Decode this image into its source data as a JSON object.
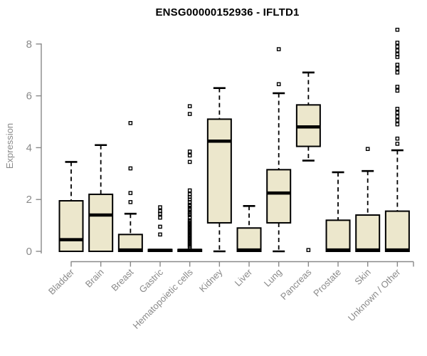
{
  "chart_data": {
    "type": "boxplot",
    "title": "ENSG00000152936 - IFLTD1",
    "ylabel": "Expression",
    "xlabel": "",
    "ylim": [
      0,
      8
    ],
    "yticks": [
      0,
      2,
      4,
      6,
      8
    ],
    "grid": false,
    "legend": "none",
    "style": {
      "box_fill": "#ece7cc",
      "box_stroke": "#000000",
      "axis_color": "#898989",
      "label_color": "#8a8a8a",
      "background": "#ffffff"
    },
    "categories": [
      "Bladder",
      "Brain",
      "Breast",
      "Gastric",
      "Hematopoietic cells",
      "Kidney",
      "Liver",
      "Lung",
      "Pancreas",
      "Prostate",
      "Skin",
      "Unknown / Other"
    ],
    "series": [
      {
        "category": "Bladder",
        "low": 0,
        "q1": 0,
        "median": 0.45,
        "q3": 1.95,
        "high": 3.45,
        "outliers": []
      },
      {
        "category": "Brain",
        "low": 0,
        "q1": 0,
        "median": 1.4,
        "q3": 2.2,
        "high": 4.1,
        "outliers": []
      },
      {
        "category": "Breast",
        "low": 0,
        "q1": 0,
        "median": 0.05,
        "q3": 0.65,
        "high": 1.45,
        "outliers": [
          1.9,
          2.25,
          3.2,
          4.95
        ]
      },
      {
        "category": "Gastric",
        "low": 0,
        "q1": 0,
        "median": 0.04,
        "q3": 0.07,
        "high": 0.07,
        "outliers": [
          0.65,
          0.95,
          1.3,
          1.45,
          1.55,
          1.7
        ]
      },
      {
        "category": "Hematopoietic cells",
        "low": 0,
        "q1": 0,
        "median": 0.04,
        "q3": 0.07,
        "high": 0.07,
        "outliers": [
          0.15,
          0.2,
          0.25,
          0.3,
          0.35,
          0.4,
          0.45,
          0.5,
          0.55,
          0.6,
          0.65,
          0.7,
          0.75,
          0.8,
          0.85,
          0.9,
          0.95,
          1,
          1.05,
          1.1,
          1.15,
          1.2,
          1.3,
          1.4,
          1.45,
          1.5,
          1.6,
          1.65,
          1.75,
          1.8,
          1.9,
          2,
          2.1,
          2.2,
          2.35,
          3.45,
          3.7,
          3.85,
          5.3,
          5.6
        ]
      },
      {
        "category": "Kidney",
        "low": 0,
        "q1": 1.1,
        "median": 4.25,
        "q3": 5.1,
        "high": 6.3,
        "outliers": []
      },
      {
        "category": "Liver",
        "low": 0,
        "q1": 0,
        "median": 0.05,
        "q3": 0.9,
        "high": 1.75,
        "outliers": []
      },
      {
        "category": "Lung",
        "low": 0,
        "q1": 1.1,
        "median": 2.25,
        "q3": 3.15,
        "high": 6.1,
        "outliers": [
          6.45,
          7.8
        ]
      },
      {
        "category": "Pancreas",
        "low": 3.5,
        "q1": 4.05,
        "median": 4.8,
        "q3": 5.65,
        "high": 6.9,
        "outliers": [
          0.05
        ]
      },
      {
        "category": "Prostate",
        "low": 0,
        "q1": 0,
        "median": 0.05,
        "q3": 1.2,
        "high": 3.05,
        "outliers": []
      },
      {
        "category": "Skin",
        "low": 0,
        "q1": 0,
        "median": 0.05,
        "q3": 1.4,
        "high": 3.1,
        "outliers": [
          3.95
        ]
      },
      {
        "category": "Unknown / Other",
        "low": 0,
        "q1": 0,
        "median": 0.05,
        "q3": 1.55,
        "high": 3.9,
        "outliers": [
          4.15,
          4.35,
          4.9,
          5.05,
          5.2,
          5.35,
          5.5,
          6.2,
          6.35,
          6.9,
          7.05,
          7.2,
          7.5,
          7.6,
          7.75,
          7.9,
          8.05,
          8.55
        ]
      }
    ]
  }
}
